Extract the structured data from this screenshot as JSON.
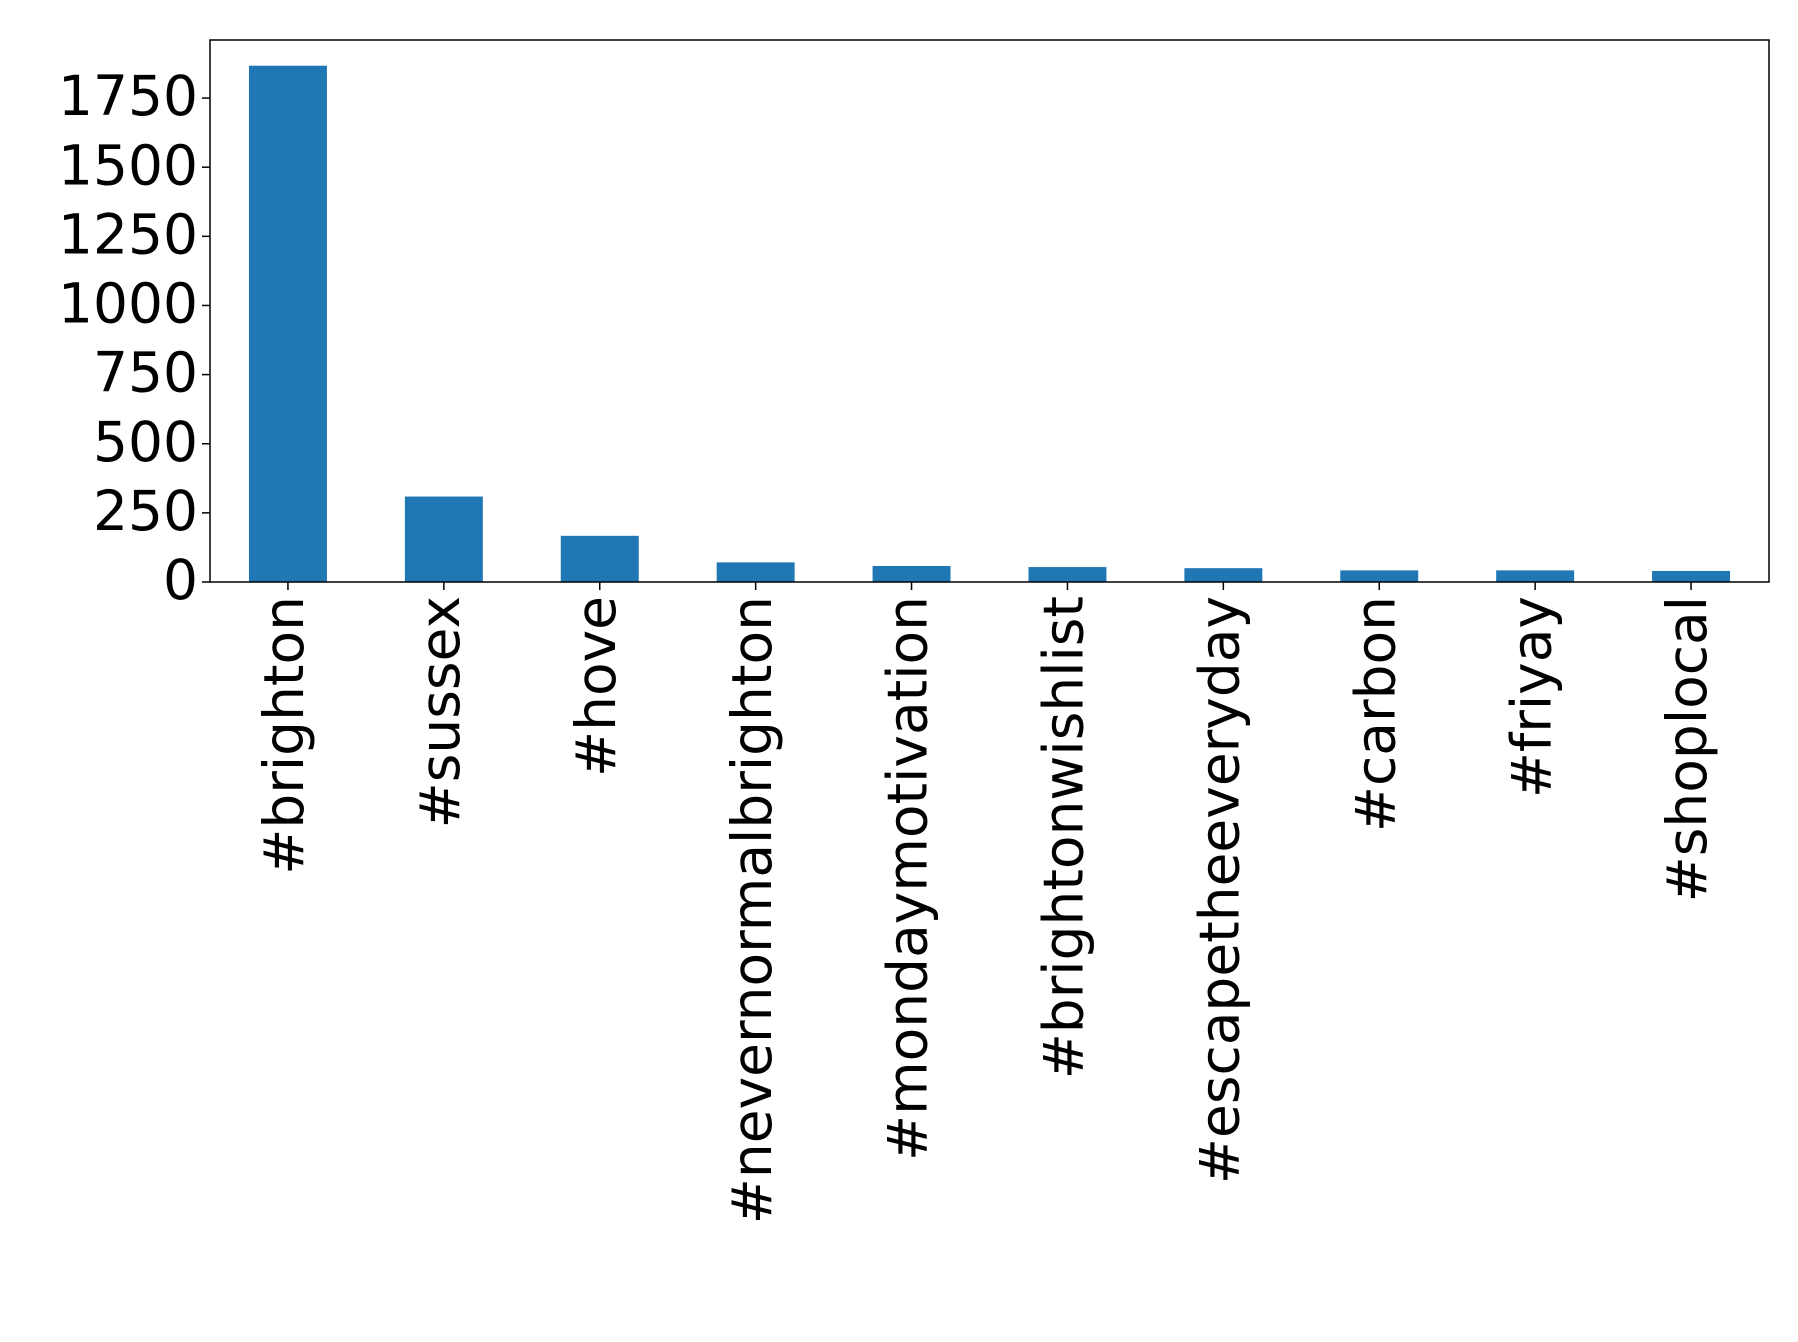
{
  "chart_data": {
    "type": "bar",
    "categories": [
      "#brighton",
      "#sussex",
      "#hove",
      "#nevernormalbrighton",
      "#mondaymotivation",
      "#brightonwishlist",
      "#escapetheeveryday",
      "#carbon",
      "#friyay",
      "#shoplocal"
    ],
    "values": [
      1867,
      309,
      167,
      71,
      58,
      54,
      50,
      42,
      42,
      40
    ],
    "color": "#1f77b4",
    "ylim": [
      0,
      1960
    ],
    "yticks": [
      0,
      250,
      500,
      750,
      1000,
      1250,
      1500,
      1750
    ],
    "grid": false
  }
}
